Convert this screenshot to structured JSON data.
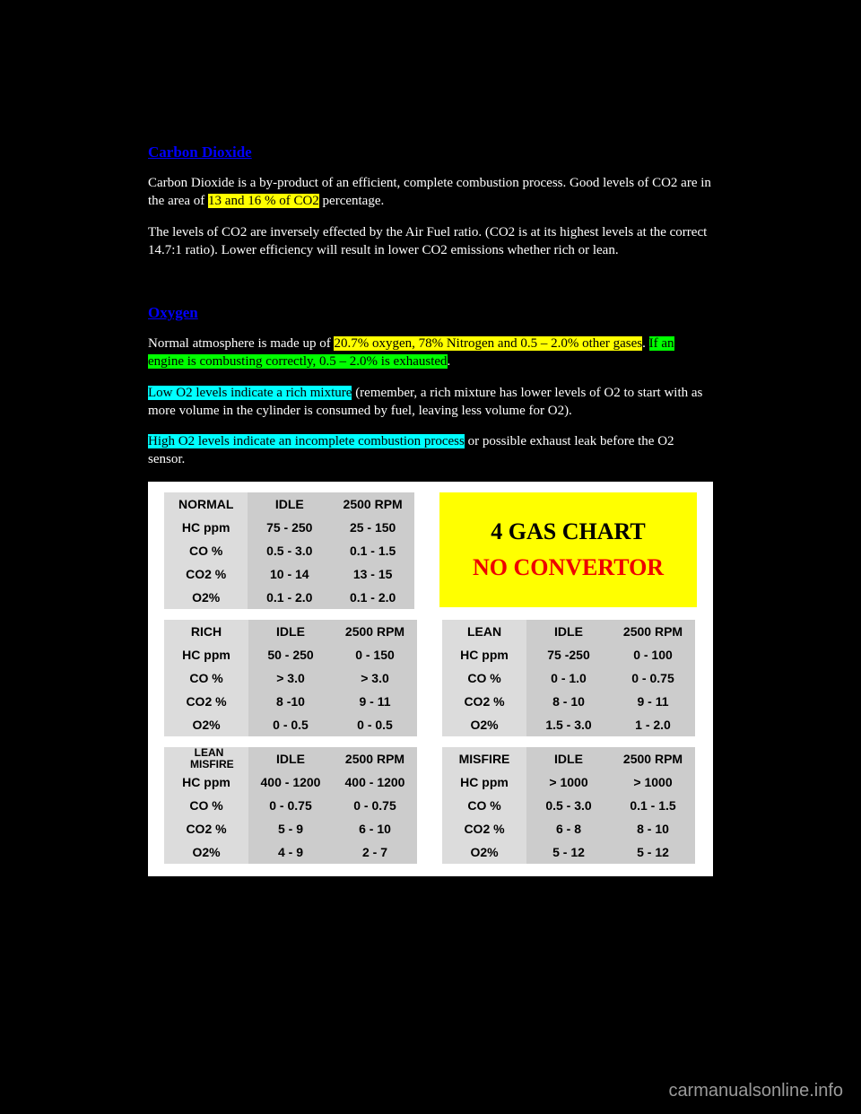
{
  "text": {
    "co2_heading": "Carbon Dioxide",
    "co2_p1_a": "Carbon Dioxide is a by-product of an efficient, complete combustion process. Good levels of CO2 are in the area of ",
    "co2_p1_hl": "13 and 16 % of CO2",
    "co2_p1_b": " percentage.",
    "co2_p2": "The levels of CO2 are inversely effected by the Air Fuel ratio. (CO2 is at its highest levels at the correct 14.7:1 ratio). Lower efficiency will result in lower CO2 emissions whether rich or lean.",
    "o2_heading": "Oxygen",
    "o2_p1_a": "Normal atmosphere is made up of ",
    "o2_p1_hl1": "20.7% oxygen, 78% Nitrogen and 0.5 – 2.0% other gases",
    "o2_p1_b": ". ",
    "o2_p1_hl2": "If an engine is combusting correctly, 0.5 – 2.0% is exhausted",
    "o2_p1_c": ".",
    "o2_p2_hl": "Low O2 levels indicate a rich mixture",
    "o2_p2_b": " (remember, a rich mixture has lower levels of O2 to start with as more volume in the cylinder is consumed by fuel, leaving less volume for O2).",
    "o2_p3_hl": "High O2 levels indicate an incomplete combustion process",
    "o2_p3_b": " or possible exhaust leak before the O2 sensor.",
    "watermark": "carmanualsonline.info"
  },
  "chart": {
    "banner_line1": "4 GAS CHART",
    "banner_line2": "NO CONVERTOR",
    "row_labels": [
      "HC ppm",
      "CO %",
      "CO2 %",
      "O2%"
    ],
    "col_headers": [
      "IDLE",
      "2500 RPM"
    ],
    "tables": {
      "normal": {
        "condition": "NORMAL",
        "idle": [
          "75 - 250",
          "0.5 - 3.0",
          "10 - 14",
          "0.1 - 2.0"
        ],
        "rpm": [
          "25 - 150",
          "0.1 - 1.5",
          "13 - 15",
          "0.1 - 2.0"
        ]
      },
      "rich": {
        "condition": "RICH",
        "idle": [
          "50 - 250",
          "> 3.0",
          "8 -10",
          "0 - 0.5"
        ],
        "rpm": [
          "0 - 150",
          "> 3.0",
          "9 - 11",
          "0 - 0.5"
        ]
      },
      "lean": {
        "condition": "LEAN",
        "idle": [
          "75 -250",
          "0 - 1.0",
          "8 - 10",
          "1.5 - 3.0"
        ],
        "rpm": [
          "0 - 100",
          "0 - 0.75",
          "9 - 11",
          "1 - 2.0"
        ]
      },
      "lean_misfire": {
        "condition_l1": "LEAN",
        "condition_l2": "MISFIRE",
        "idle": [
          "400 - 1200",
          "0 - 0.75",
          "5 - 9",
          "4 - 9"
        ],
        "rpm": [
          "400 - 1200",
          "0 - 0.75",
          "6 - 10",
          "2 - 7"
        ]
      },
      "misfire": {
        "condition": "MISFIRE",
        "idle": [
          "> 1000",
          "0.5 - 3.0",
          "6 - 8",
          "5 - 12"
        ],
        "rpm": [
          "> 1000",
          "0.1 - 1.5",
          "8 - 10",
          "5 - 12"
        ]
      }
    },
    "colors": {
      "bg_white": "#ffffff",
      "cell_label": "#dcdcdc",
      "cell_data": "#cccccc",
      "banner_bg": "#ffff00",
      "condition_text": "#0000ff",
      "rpm_text": "#ee0000"
    }
  }
}
